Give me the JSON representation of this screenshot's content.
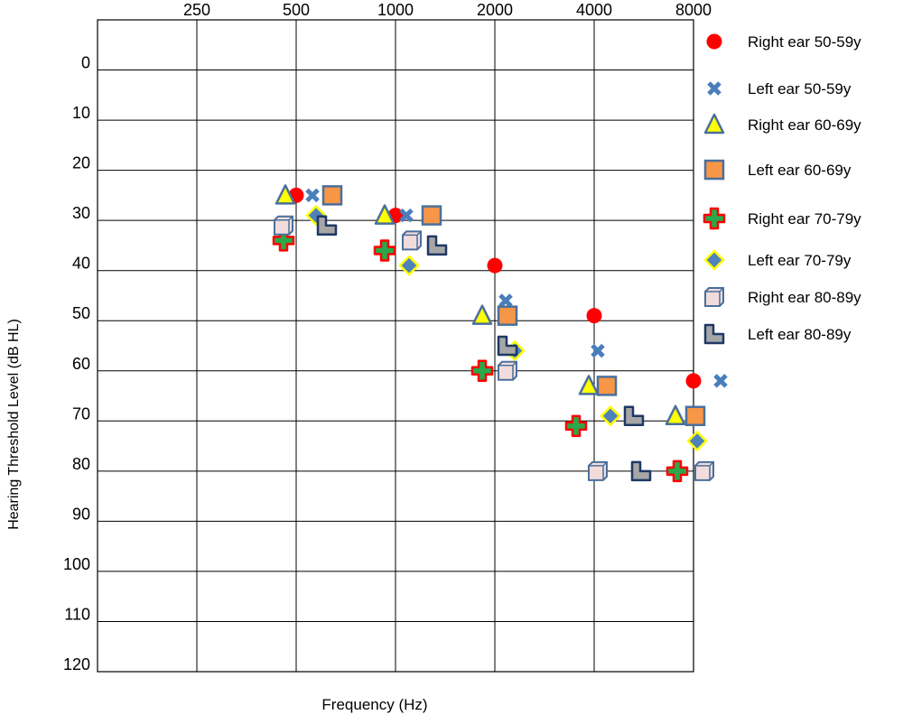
{
  "chart_data": {
    "type": "scatter",
    "xlabel": "Frequency (Hz)",
    "ylabel": "Hearing Threshold Level (dB HL)",
    "x_ticks": [
      "250",
      "500",
      "1000",
      "2000",
      "4000",
      "8000"
    ],
    "y_ticks": [
      "0",
      "10",
      "20",
      "30",
      "40",
      "50",
      "60",
      "70",
      "80",
      "90",
      "100",
      "110",
      "120"
    ],
    "x_axis_position": "top",
    "y_axis_inverted": true,
    "ylim": [
      -10,
      120
    ],
    "grid": true,
    "legend_position": "right",
    "series": [
      {
        "name": "Right ear  50-59y",
        "marker": "circle",
        "color": "#ff0000",
        "edge": "#ff0000",
        "points": [
          {
            "x": 500,
            "y": 25
          },
          {
            "x": 1000,
            "y": 29
          },
          {
            "x": 2000,
            "y": 39
          },
          {
            "x": 4000,
            "y": 49
          },
          {
            "x": 8000,
            "y": 62
          }
        ]
      },
      {
        "name": "Left ear  50-59y",
        "marker": "x",
        "color": "#4a7ebb",
        "edge": "#4a7ebb",
        "points": [
          {
            "x": 500,
            "y": 25
          },
          {
            "x": 1000,
            "y": 29
          },
          {
            "x": 2000,
            "y": 46
          },
          {
            "x": 4000,
            "y": 56
          },
          {
            "x": 8000,
            "y": 62
          }
        ]
      },
      {
        "name": "Right ear 60-69y",
        "marker": "triangle",
        "color": "#ffff00",
        "edge": "#4a6f9c",
        "points": [
          {
            "x": 500,
            "y": 25
          },
          {
            "x": 1000,
            "y": 29
          },
          {
            "x": 2000,
            "y": 49
          },
          {
            "x": 4000,
            "y": 63
          },
          {
            "x": 8000,
            "y": 69
          }
        ]
      },
      {
        "name": "Left ear 60-69y",
        "marker": "square",
        "color": "#f79646",
        "edge": "#4a6f9c",
        "points": [
          {
            "x": 500,
            "y": 25
          },
          {
            "x": 1000,
            "y": 29
          },
          {
            "x": 2000,
            "y": 49
          },
          {
            "x": 4000,
            "y": 63
          },
          {
            "x": 8000,
            "y": 69
          }
        ]
      },
      {
        "name": "Right ear 70-79y",
        "marker": "plus",
        "color": "#2aa84a",
        "edge": "#ff0000",
        "points": [
          {
            "x": 500,
            "y": 34
          },
          {
            "x": 1000,
            "y": 36
          },
          {
            "x": 2000,
            "y": 60
          },
          {
            "x": 4000,
            "y": 71
          },
          {
            "x": 8000,
            "y": 80
          }
        ]
      },
      {
        "name": "Left ear 70-79y",
        "marker": "diamond",
        "color": "#4f81bd",
        "edge": "#ffff00",
        "points": [
          {
            "x": 500,
            "y": 29
          },
          {
            "x": 1000,
            "y": 39
          },
          {
            "x": 2000,
            "y": 56
          },
          {
            "x": 4000,
            "y": 69
          },
          {
            "x": 8000,
            "y": 74
          }
        ]
      },
      {
        "name": "Right ear 80-89y",
        "marker": "cube",
        "color": "#f2dcdb",
        "edge": "#4a6f9c",
        "points": [
          {
            "x": 500,
            "y": 31
          },
          {
            "x": 1000,
            "y": 34
          },
          {
            "x": 2000,
            "y": 60
          },
          {
            "x": 4000,
            "y": 80
          },
          {
            "x": 8000,
            "y": 80
          }
        ]
      },
      {
        "name": "Left ear 80-89y",
        "marker": "lshape",
        "color": "#a6a6a6",
        "edge": "#1f3864",
        "points": [
          {
            "x": 500,
            "y": 31
          },
          {
            "x": 1000,
            "y": 35
          },
          {
            "x": 2000,
            "y": 55
          },
          {
            "x": 4000,
            "y": 69
          },
          {
            "x": 8000,
            "y": 80
          }
        ]
      }
    ]
  }
}
